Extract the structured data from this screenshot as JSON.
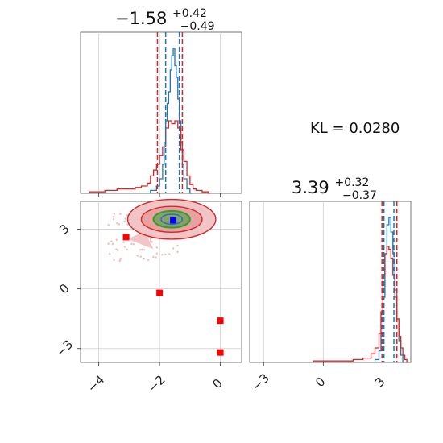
{
  "chart_data": [
    {
      "panel": "marginal-x1",
      "type": "line",
      "title": "−1.58",
      "title_sup": "+0.42",
      "title_sub": "−0.49",
      "xlim": [
        -4.6,
        0.7
      ],
      "x_ticks": [
        -4,
        -2,
        0
      ],
      "grid": true,
      "series": [
        {
          "color": "#1f77b4",
          "step_x": [
            -2.3,
            -2.1,
            -2.0,
            -1.9,
            -1.85,
            -1.8,
            -1.75,
            -1.7,
            -1.65,
            -1.6,
            -1.55,
            -1.5,
            -1.45,
            -1.4,
            -1.35,
            -1.3,
            -1.25,
            -1.2,
            -1.1,
            -1.0
          ],
          "step_y": [
            0.02,
            0.05,
            0.1,
            0.2,
            0.35,
            0.5,
            0.62,
            0.7,
            0.85,
            0.95,
            1.0,
            0.88,
            0.8,
            0.65,
            0.5,
            0.35,
            0.2,
            0.1,
            0.03,
            0.0
          ]
        },
        {
          "color": "#d62728",
          "step_x": [
            -4.3,
            -4.0,
            -3.8,
            -3.6,
            -3.4,
            -3.2,
            -3.0,
            -2.8,
            -2.6,
            -2.4,
            -2.3,
            -2.2,
            -2.1,
            -2.0,
            -1.9,
            -1.8,
            -1.7,
            -1.6,
            -1.5,
            -1.4,
            -1.3,
            -1.2,
            -1.1,
            -1.0,
            -0.9,
            -0.8,
            -0.6,
            -0.4
          ],
          "step_y": [
            0.01,
            0.01,
            0.02,
            0.02,
            0.03,
            0.03,
            0.03,
            0.04,
            0.05,
            0.07,
            0.12,
            0.16,
            0.2,
            0.26,
            0.32,
            0.45,
            0.5,
            0.48,
            0.5,
            0.45,
            0.3,
            0.22,
            0.12,
            0.06,
            0.03,
            0.02,
            0.01,
            0.0
          ]
        }
      ],
      "vlines": [
        {
          "x": -2.07,
          "color": "#d62728"
        },
        {
          "x": -1.25,
          "color": "#d62728"
        },
        {
          "x": -1.8,
          "color": "#1f77b4"
        },
        {
          "x": -1.35,
          "color": "#1f77b4"
        }
      ]
    },
    {
      "panel": "joint-x1-x2",
      "type": "scatter",
      "xlim": [
        -4.6,
        0.7
      ],
      "ylim": [
        -3.7,
        4.4
      ],
      "x_ticks": [
        -4,
        -2,
        0
      ],
      "y_ticks": [
        -3,
        0,
        3
      ],
      "grid": true,
      "markers": [
        {
          "x": -3.1,
          "y": 2.6,
          "color": "#ff0000"
        },
        {
          "x": -2.0,
          "y": -0.2,
          "color": "#ff0000"
        },
        {
          "x": 0.0,
          "y": -1.6,
          "color": "#ff0000"
        },
        {
          "x": 0.0,
          "y": -3.2,
          "color": "#ff0000"
        },
        {
          "x": -1.55,
          "y": 3.45,
          "color": "#0000ff"
        }
      ],
      "contour_fill_color": "#e8a0a0",
      "contour_line_colors": [
        "#d62728",
        "#2ca02c",
        "#1f77b4"
      ],
      "scatter_points_color": "#f4b9bd"
    },
    {
      "panel": "marginal-x2",
      "type": "line",
      "title": "3.39",
      "title_sup": "+0.32",
      "title_sub": "−0.37",
      "xlim": [
        -3.7,
        4.4
      ],
      "x_ticks": [
        -3,
        0,
        3
      ],
      "grid": true,
      "series": [
        {
          "color": "#1f77b4",
          "step_x": [
            2.6,
            2.8,
            2.9,
            3.0,
            3.1,
            3.2,
            3.3,
            3.4,
            3.5,
            3.6,
            3.7,
            3.8,
            3.9,
            4.0
          ],
          "step_y": [
            0.02,
            0.08,
            0.2,
            0.45,
            0.75,
            0.95,
            1.0,
            0.9,
            0.75,
            0.5,
            0.3,
            0.15,
            0.05,
            0.0
          ]
        },
        {
          "color": "#d62728",
          "step_x": [
            -0.5,
            0.5,
            1.5,
            2.0,
            2.4,
            2.6,
            2.8,
            2.9,
            3.0,
            3.1,
            3.2,
            3.3,
            3.4,
            3.5,
            3.6,
            3.7,
            3.8,
            3.9,
            4.0,
            4.1,
            4.2
          ],
          "step_y": [
            0.01,
            0.01,
            0.02,
            0.03,
            0.06,
            0.1,
            0.2,
            0.35,
            0.6,
            0.75,
            0.8,
            0.78,
            0.72,
            0.6,
            0.45,
            0.3,
            0.18,
            0.1,
            0.05,
            0.02,
            0.0
          ]
        }
      ],
      "vlines": [
        {
          "x": 2.95,
          "color": "#d62728"
        },
        {
          "x": 3.7,
          "color": "#d62728"
        },
        {
          "x": 3.05,
          "color": "#1f77b4"
        },
        {
          "x": 3.55,
          "color": "#1f77b4"
        }
      ]
    }
  ],
  "kl_label": "KL = 0.0280"
}
